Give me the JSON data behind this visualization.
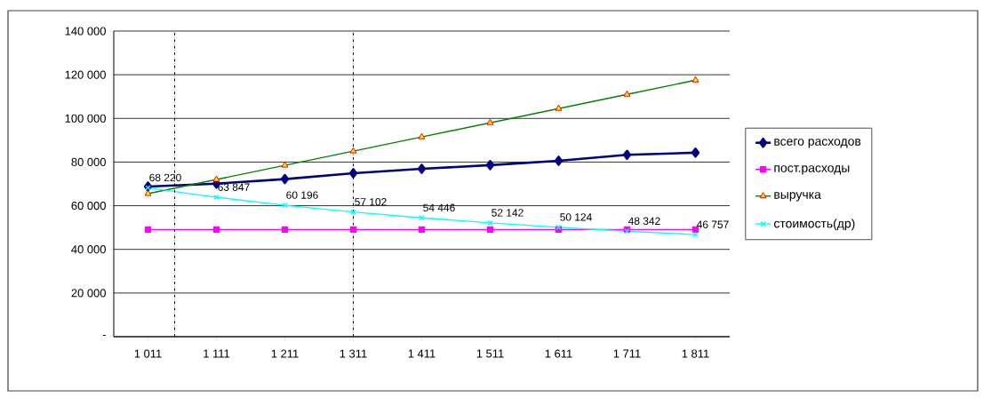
{
  "chart_data": {
    "type": "line",
    "x": [
      1011,
      1111,
      1211,
      1311,
      1411,
      1511,
      1611,
      1711,
      1811
    ],
    "xlim": [
      961,
      1861
    ],
    "xticks": [
      {
        "value": 1011,
        "label": "1 011"
      },
      {
        "value": 1111,
        "label": "1 111"
      },
      {
        "value": 1211,
        "label": "1 211"
      },
      {
        "value": 1311,
        "label": "1 311"
      },
      {
        "value": 1411,
        "label": "1 411"
      },
      {
        "value": 1511,
        "label": "1 511"
      },
      {
        "value": 1611,
        "label": "1 611"
      },
      {
        "value": 1711,
        "label": "1 711"
      },
      {
        "value": 1811,
        "label": "1 811"
      }
    ],
    "ylim": [
      0,
      140000
    ],
    "yticks": [
      {
        "value": 0,
        "label": "-"
      },
      {
        "value": 20000,
        "label": "20 000"
      },
      {
        "value": 40000,
        "label": "40 000"
      },
      {
        "value": 60000,
        "label": "60 000"
      },
      {
        "value": 80000,
        "label": "80 000"
      },
      {
        "value": 100000,
        "label": "100 000"
      },
      {
        "value": 120000,
        "label": "120 000"
      },
      {
        "value": 140000,
        "label": "140 000"
      }
    ],
    "grid": "y",
    "legend": "right",
    "series": [
      {
        "name": "всего расходов",
        "color": "#000080",
        "marker": "diamond",
        "values": [
          68800,
          70100,
          72200,
          74900,
          76900,
          78600,
          80600,
          83300,
          84300
        ]
      },
      {
        "name": "пост.расходы",
        "color": "#ff00ff",
        "marker": "square",
        "values": [
          49100,
          49100,
          49100,
          49100,
          49100,
          49100,
          49100,
          49100,
          49100
        ]
      },
      {
        "name": "выручка",
        "color": "#008000",
        "marker": "triangle",
        "values": [
          65500,
          72000,
          78500,
          85000,
          91500,
          98000,
          104500,
          111000,
          117500
        ]
      },
      {
        "name": "стоимость(др)",
        "color": "#00ffff",
        "marker": "cross",
        "values": [
          68220,
          63847,
          60196,
          57102,
          54446,
          52142,
          50124,
          48342,
          46757
        ],
        "value_labels": [
          "68 220",
          "63 847",
          "60 196",
          "57 102",
          "54 446",
          "52 142",
          "50 124",
          "48 342",
          "46 757"
        ]
      }
    ],
    "ref_lines": [
      {
        "axis": "x",
        "value": 1050,
        "line_style": "dashdot"
      },
      {
        "axis": "x",
        "value": 1311,
        "line_style": "dashdot"
      }
    ]
  }
}
